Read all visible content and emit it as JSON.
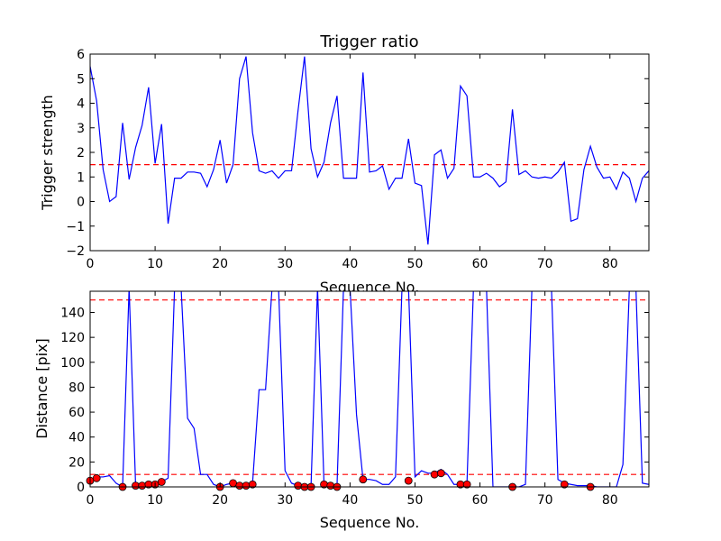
{
  "chart_data": [
    {
      "type": "line",
      "title": "Trigger ratio",
      "xlabel": "Sequence No.",
      "ylabel": "Trigger strength",
      "xlim": [
        0,
        86
      ],
      "ylim": [
        -2,
        6
      ],
      "xticks": [
        0,
        10,
        20,
        30,
        40,
        50,
        60,
        70,
        80
      ],
      "yticks": [
        -2,
        -1,
        0,
        1,
        2,
        3,
        4,
        5,
        6
      ],
      "series": [
        {
          "line_color": "#0000ff",
          "x": [
            0,
            1,
            2,
            3,
            4,
            5,
            6,
            7,
            8,
            9,
            10,
            11,
            12,
            13,
            14,
            15,
            16,
            17,
            18,
            19,
            20,
            21,
            22,
            23,
            24,
            25,
            26,
            27,
            28,
            29,
            30,
            31,
            32,
            33,
            34,
            35,
            36,
            37,
            38,
            39,
            40,
            41,
            42,
            43,
            44,
            45,
            46,
            47,
            48,
            49,
            50,
            51,
            52,
            53,
            54,
            55,
            56,
            57,
            58,
            59,
            60,
            61,
            62,
            63,
            64,
            65,
            66,
            67,
            68,
            69,
            70,
            71,
            72,
            73,
            74,
            75,
            76,
            77,
            78,
            79,
            80,
            81,
            82,
            83,
            84,
            85,
            86
          ],
          "y": [
            5.5,
            4.1,
            1.3,
            0.0,
            0.2,
            3.2,
            0.9,
            2.2,
            3.1,
            4.65,
            1.55,
            3.15,
            -0.9,
            0.95,
            0.95,
            1.2,
            1.2,
            1.15,
            0.6,
            1.3,
            2.5,
            0.75,
            1.5,
            5.0,
            5.9,
            2.8,
            1.25,
            1.15,
            1.25,
            0.95,
            1.25,
            1.25,
            3.7,
            5.9,
            2.15,
            1.0,
            1.6,
            3.2,
            4.3,
            0.95,
            0.95,
            0.95,
            5.25,
            1.2,
            1.25,
            1.45,
            0.5,
            0.95,
            0.95,
            2.55,
            0.75,
            0.65,
            -1.75,
            1.9,
            2.1,
            0.95,
            1.35,
            4.7,
            4.3,
            1.0,
            1.0,
            1.15,
            0.95,
            0.6,
            0.8,
            3.75,
            1.1,
            1.25,
            1.0,
            0.95,
            1.0,
            0.95,
            1.2,
            1.6,
            -0.8,
            -0.7,
            1.3,
            2.25,
            1.4,
            0.95,
            1.0,
            0.5,
            1.2,
            0.95,
            0.0,
            0.95,
            1.25
          ]
        }
      ],
      "reference_lines": [
        {
          "y": 1.5,
          "color": "#ff0000",
          "style": "dashed"
        }
      ]
    },
    {
      "type": "line",
      "title": "",
      "xlabel": "Sequence No.",
      "ylabel": "Distance [pix]",
      "xlim": [
        0,
        86
      ],
      "ylim": [
        0,
        157
      ],
      "xticks": [
        0,
        10,
        20,
        30,
        40,
        50,
        60,
        70,
        80
      ],
      "yticks": [
        0,
        20,
        40,
        60,
        80,
        100,
        120,
        140
      ],
      "series": [
        {
          "line_color": "#0000ff",
          "x": [
            0,
            1,
            2,
            3,
            4,
            5,
            6,
            7,
            8,
            9,
            10,
            11,
            12,
            13,
            14,
            15,
            16,
            17,
            18,
            19,
            20,
            21,
            22,
            23,
            24,
            25,
            26,
            27,
            28,
            29,
            30,
            31,
            32,
            33,
            34,
            35,
            36,
            37,
            38,
            39,
            40,
            41,
            42,
            43,
            44,
            45,
            46,
            47,
            48,
            49,
            50,
            51,
            52,
            53,
            54,
            55,
            56,
            57,
            58,
            59,
            60,
            61,
            62,
            63,
            64,
            65,
            66,
            67,
            68,
            69,
            70,
            71,
            72,
            73,
            74,
            75,
            76,
            77,
            78,
            79,
            80,
            81,
            82,
            83,
            84,
            85,
            86
          ],
          "y": [
            5,
            8,
            8,
            9,
            3,
            0,
            160,
            1,
            1,
            2,
            2,
            4,
            7,
            160,
            160,
            55,
            47,
            10,
            10,
            2,
            0,
            2,
            3,
            2,
            2,
            3,
            78,
            78,
            160,
            160,
            13,
            3,
            1,
            0,
            1,
            160,
            2,
            1,
            1,
            160,
            160,
            58,
            6,
            6,
            5,
            2,
            2,
            8,
            160,
            160,
            8,
            13,
            11,
            11,
            14,
            10,
            2,
            2,
            3,
            160,
            160,
            160,
            0,
            0,
            0,
            0,
            0,
            2,
            160,
            160,
            160,
            160,
            6,
            3,
            2,
            1,
            1,
            1,
            0,
            0,
            0,
            0,
            18,
            160,
            160,
            3,
            2
          ]
        },
        {
          "marker_color": "#ff0000",
          "style": "markers",
          "x": [
            0,
            1,
            5,
            7,
            8,
            9,
            10,
            11,
            20,
            22,
            23,
            24,
            25,
            32,
            33,
            34,
            36,
            37,
            38,
            42,
            49,
            53,
            54,
            57,
            58,
            65,
            73,
            77
          ],
          "y": [
            5,
            7,
            0,
            1,
            1,
            2,
            2,
            4,
            0,
            3,
            1,
            1,
            2,
            1,
            0,
            0,
            2,
            1,
            0,
            6,
            5,
            10,
            11,
            2,
            2,
            0,
            2,
            0
          ]
        }
      ],
      "reference_lines": [
        {
          "y": 150,
          "color": "#ff0000",
          "style": "dashed"
        },
        {
          "y": 10,
          "color": "#ff0000",
          "style": "dashed"
        }
      ]
    }
  ]
}
